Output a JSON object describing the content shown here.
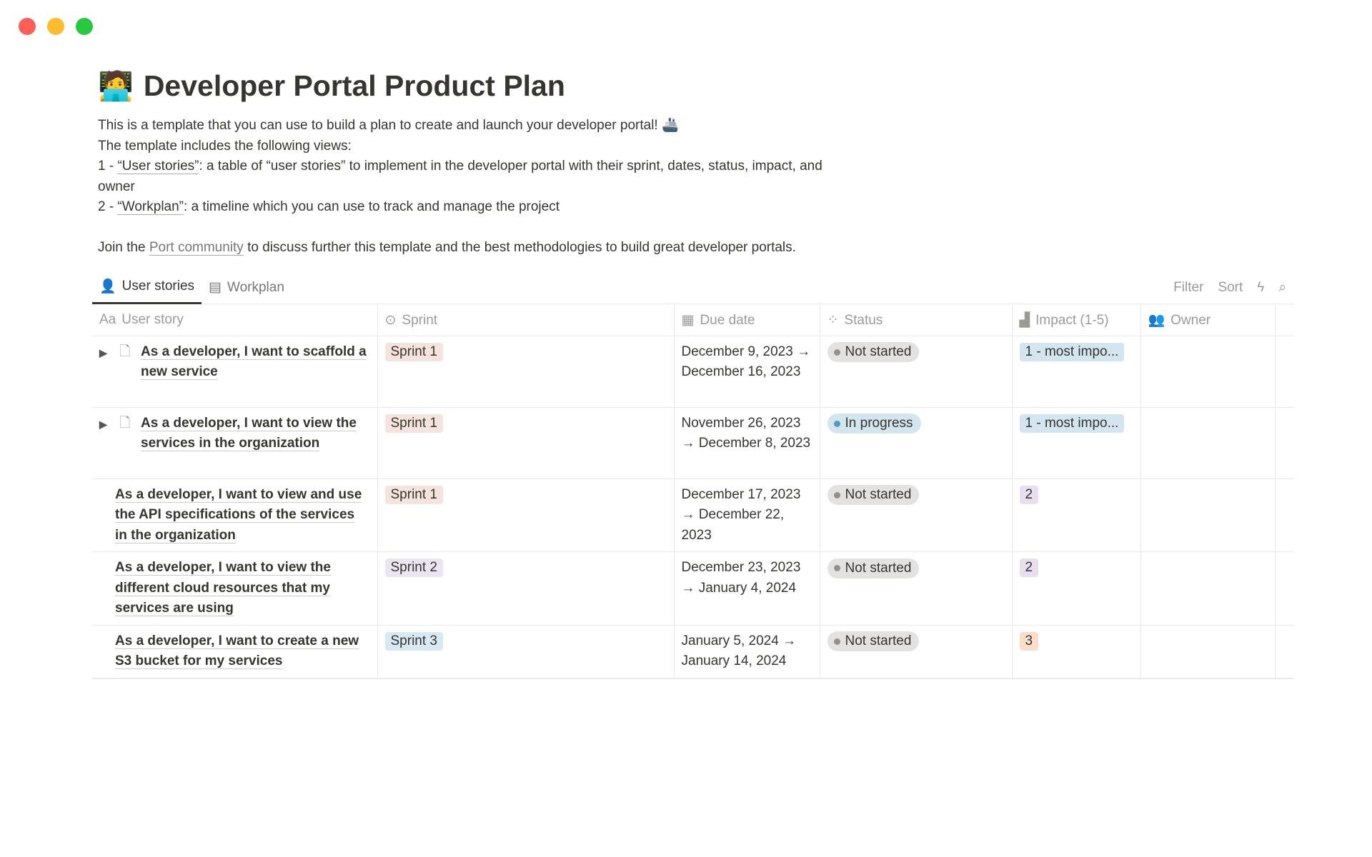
{
  "title": {
    "emoji": "🧑‍💻",
    "text": "Developer Portal Product Plan"
  },
  "description": {
    "line1": "This is a template that you can use to build a plan to create and launch your developer portal! 🚢",
    "line2": "The template includes the following views:",
    "line3_prefix": "1 - ",
    "line3_link": "“User stories”",
    "line3_suffix": ": a table of “user stories” to implement in the developer portal with their sprint, dates, status, impact, and owner",
    "line4_prefix": "2 - ",
    "line4_link": "“Workplan”",
    "line4_suffix": ": a timeline which you can use to track and manage the project",
    "line5_prefix": "Join the ",
    "line5_link": "Port community",
    "line5_suffix": " to discuss further this template and the best methodologies to build great developer portals."
  },
  "tabs": [
    {
      "label": "User stories",
      "icon": "person-icon",
      "active": true
    },
    {
      "label": "Workplan",
      "icon": "timeline-icon"
    }
  ],
  "toolbar": {
    "filter": "Filter",
    "sort": "Sort"
  },
  "columns": [
    {
      "label": "User story",
      "icon": "Aa"
    },
    {
      "label": "Sprint"
    },
    {
      "label": "Due date"
    },
    {
      "label": "Status"
    },
    {
      "label": "Impact (1-5)"
    },
    {
      "label": "Owner"
    }
  ],
  "rows": [
    {
      "story": "As a developer, I want to scaffold a new service",
      "expandable": true,
      "sprint": "Sprint 1",
      "due": "December 9, 2023 → December 16, 2023",
      "status": "Not started",
      "impact": "1 - most impo..."
    },
    {
      "story": "As a developer, I want to view the services in the organization",
      "expandable": true,
      "sprint": "Sprint 1",
      "due": "November 26, 2023 → December 8, 2023",
      "status": "In progress",
      "impact": "1 - most impo..."
    },
    {
      "story": "As a developer, I want to view and use the API specifications of the services in the organization",
      "expandable": false,
      "sprint": "Sprint 1",
      "due": "December 17, 2023 → December 22, 2023",
      "status": "Not started",
      "impact": "2"
    },
    {
      "story": "As a developer, I want to view the different cloud resources that my services are using",
      "expandable": false,
      "sprint": "Sprint 2",
      "due": "December 23, 2023 → January 4, 2024",
      "status": "Not started",
      "impact": "2"
    },
    {
      "story": "As a developer, I want to create a new S3 bucket for my services",
      "expandable": false,
      "sprint": "Sprint 3",
      "due": "January 5, 2024 → January 14, 2024",
      "status": "Not started",
      "impact": "3"
    }
  ],
  "colors": {
    "sprint1": "#f4e4dd",
    "sprint2": "#ebe5f2",
    "sprint3": "#d9e9f3",
    "not_started": "#e3e2e0",
    "in_progress": "#d3e5ef",
    "impact1": "#d3e5ef",
    "impact2": "#e8deee",
    "impact3": "#fadec9"
  }
}
